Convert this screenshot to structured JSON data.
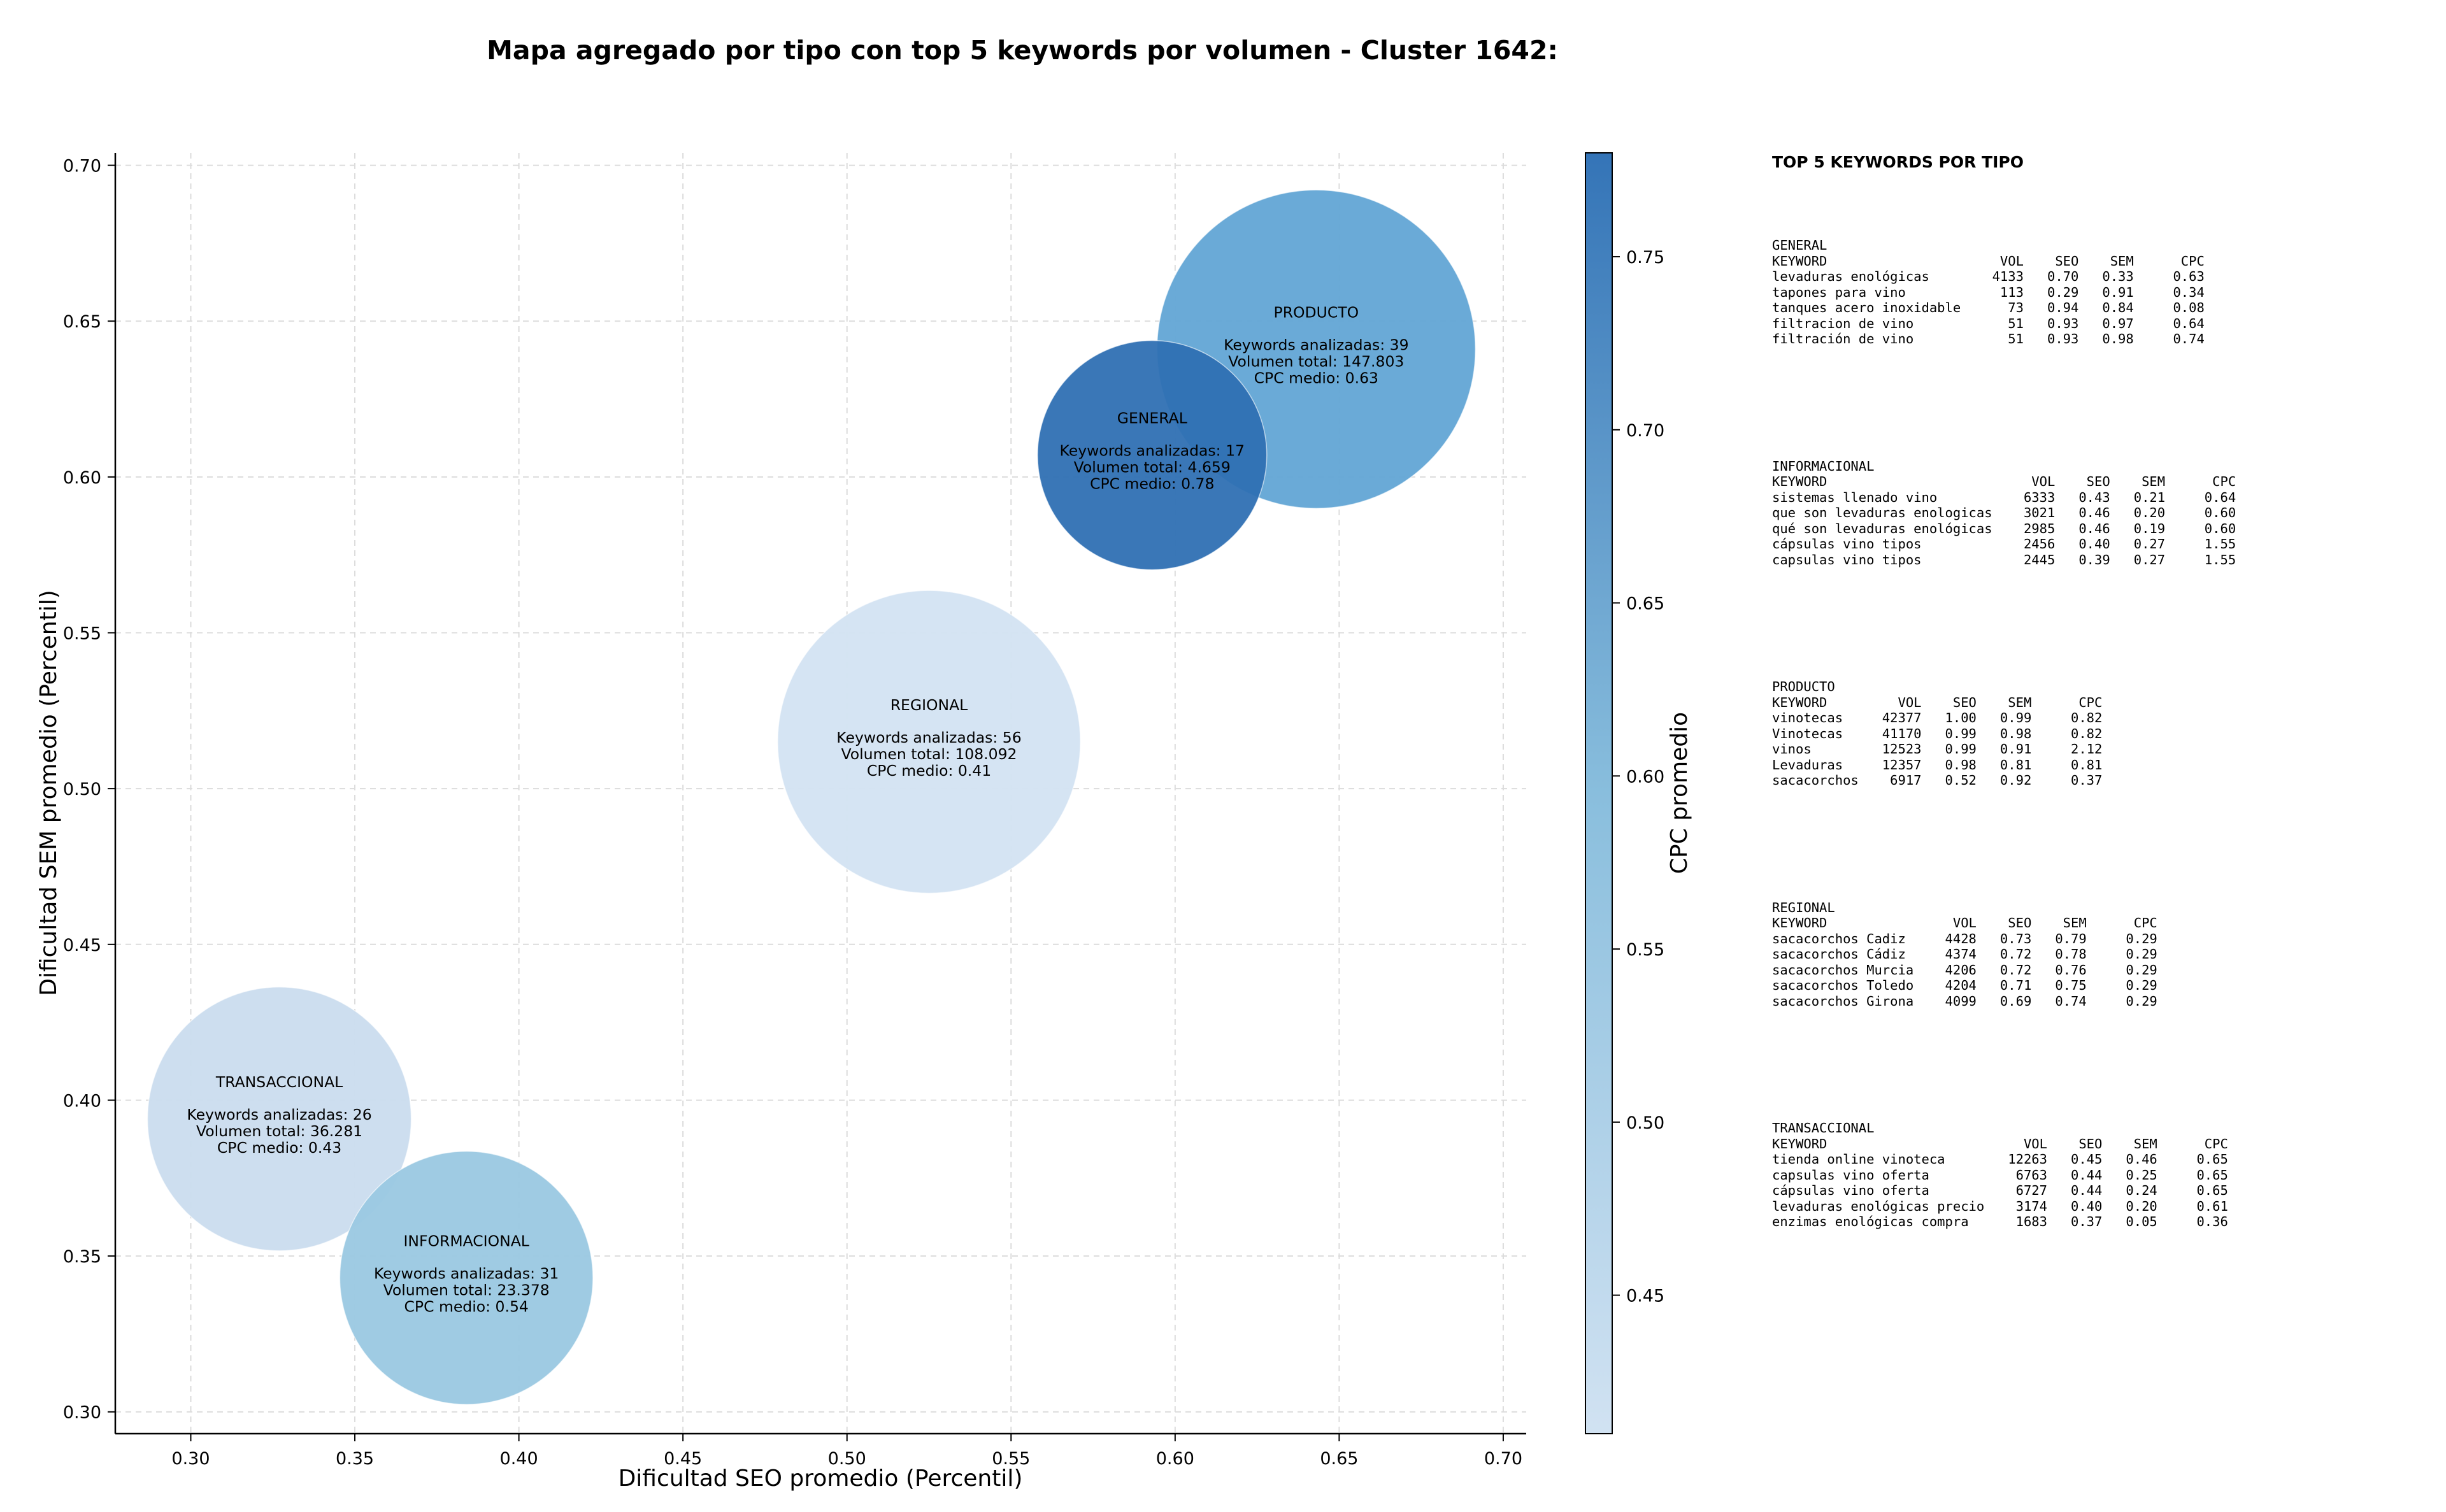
{
  "title": "Mapa agregado por tipo con top 5 keywords por volumen - Cluster 1642:",
  "chart_data": {
    "type": "scatter",
    "variant": "bubble",
    "title": "Mapa agregado por tipo con top 5 keywords por volumen - Cluster 1642:",
    "xlabel": "Dificultad SEO promedio (Percentil)",
    "ylabel": "Dificultad SEM promedio (Percentil)",
    "xlim": [
      0.277,
      0.707
    ],
    "ylim": [
      0.293,
      0.704
    ],
    "xticks": [
      "0.30",
      "0.35",
      "0.40",
      "0.45",
      "0.50",
      "0.55",
      "0.60",
      "0.65",
      "0.70"
    ],
    "yticks": [
      "0.30",
      "0.35",
      "0.40",
      "0.45",
      "0.50",
      "0.55",
      "0.60",
      "0.65",
      "0.70"
    ],
    "grid": true,
    "size_encoding": "volumen total",
    "color_encoding": "CPC medio",
    "colorbar": {
      "label": "CPC promedio",
      "range": [
        0.41,
        0.78
      ],
      "ticks": [
        "0.45",
        "0.50",
        "0.55",
        "0.60",
        "0.65",
        "0.70",
        "0.75"
      ],
      "colors": [
        "#d1e2f2",
        "#3474b7"
      ]
    },
    "points": [
      {
        "name": "GENERAL",
        "x": 0.593,
        "y": 0.607,
        "keywords_label": "Keywords analizadas: 17",
        "volume_label": "Volumen total: 4.659",
        "cpc_label": "CPC medio: 0.78",
        "volume": 4659,
        "cpc": 0.78,
        "color": "#2f70b3"
      },
      {
        "name": "PRODUCTO",
        "x": 0.643,
        "y": 0.641,
        "keywords_label": "Keywords analizadas: 39",
        "volume_label": "Volumen total: 147.803",
        "cpc_label": "CPC medio: 0.63",
        "volume": 147803,
        "cpc": 0.63,
        "color": "#62a5d5"
      },
      {
        "name": "REGIONAL",
        "x": 0.525,
        "y": 0.515,
        "keywords_label": "Keywords analizadas: 56",
        "volume_label": "Volumen total: 108.092",
        "cpc_label": "CPC medio: 0.41",
        "volume": 108092,
        "cpc": 0.41,
        "color": "#d3e3f2"
      },
      {
        "name": "TRANSACCIONAL",
        "x": 0.327,
        "y": 0.394,
        "keywords_label": "Keywords analizadas: 26",
        "volume_label": "Volumen total: 36.281",
        "cpc_label": "CPC medio: 0.43",
        "volume": 36281,
        "cpc": 0.43,
        "color": "#cadcee"
      },
      {
        "name": "INFORMACIONAL",
        "x": 0.384,
        "y": 0.343,
        "keywords_label": "Keywords analizadas: 31",
        "volume_label": "Volumen total: 23.378",
        "cpc_label": "CPC medio: 0.54",
        "volume": 23378,
        "cpc": 0.54,
        "color": "#9ac8e1"
      }
    ]
  },
  "tables": {
    "heading": "TOP 5 KEYWORDS POR TIPO",
    "blocks": [
      {
        "name": "GENERAL",
        "lines": [
          "GENERAL",
          "KEYWORD                      VOL    SEO    SEM      CPC",
          "levaduras enológicas        4133   0.70   0.33     0.63",
          "tapones para vino            113   0.29   0.91     0.34",
          "tanques acero inoxidable      73   0.94   0.84     0.08",
          "filtracion de vino            51   0.93   0.97     0.64",
          "filtración de vino            51   0.93   0.98     0.74"
        ]
      },
      {
        "name": "INFORMACIONAL",
        "lines": [
          "INFORMACIONAL",
          "KEYWORD                          VOL    SEO    SEM      CPC",
          "sistemas llenado vino           6333   0.43   0.21     0.64",
          "que son levaduras enologicas    3021   0.46   0.20     0.60",
          "qué son levaduras enológicas    2985   0.46   0.19     0.60",
          "cápsulas vino tipos             2456   0.40   0.27     1.55",
          "capsulas vino tipos             2445   0.39   0.27     1.55"
        ]
      },
      {
        "name": "PRODUCTO",
        "lines": [
          "PRODUCTO",
          "KEYWORD         VOL    SEO    SEM      CPC",
          "vinotecas     42377   1.00   0.99     0.82",
          "Vinotecas     41170   0.99   0.98     0.82",
          "vinos         12523   0.99   0.91     2.12",
          "Levaduras     12357   0.98   0.81     0.81",
          "sacacorchos    6917   0.52   0.92     0.37"
        ]
      },
      {
        "name": "REGIONAL",
        "lines": [
          "REGIONAL",
          "KEYWORD                VOL    SEO    SEM      CPC",
          "sacacorchos Cadiz     4428   0.73   0.79     0.29",
          "sacacorchos Cádiz     4374   0.72   0.78     0.29",
          "sacacorchos Murcia    4206   0.72   0.76     0.29",
          "sacacorchos Toledo    4204   0.71   0.75     0.29",
          "sacacorchos Girona    4099   0.69   0.74     0.29"
        ]
      },
      {
        "name": "TRANSACCIONAL",
        "lines": [
          "TRANSACCIONAL",
          "KEYWORD                         VOL    SEO    SEM      CPC",
          "tienda online vinoteca        12263   0.45   0.46     0.65",
          "capsulas vino oferta           6763   0.44   0.25     0.65",
          "cápsulas vino oferta           6727   0.44   0.24     0.65",
          "levaduras enológicas precio    3174   0.40   0.20     0.61",
          "enzimas enológicas compra      1683   0.37   0.05     0.36"
        ]
      }
    ]
  }
}
